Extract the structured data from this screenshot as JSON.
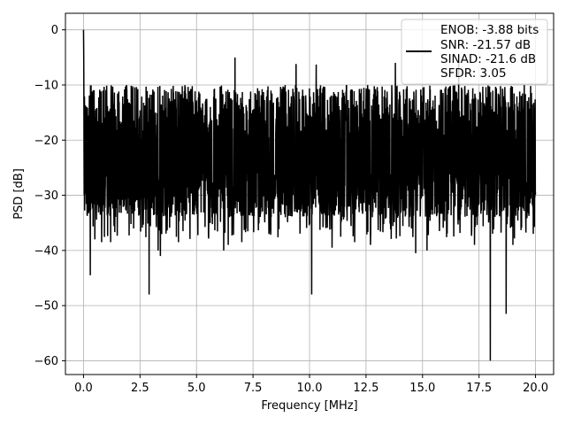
{
  "chart_data": {
    "type": "line",
    "xlabel": "Frequency [MHz]",
    "ylabel": "PSD [dB]",
    "xlim": [
      -0.8,
      20.8
    ],
    "ylim": [
      -62.5,
      3.0
    ],
    "xticks": [
      0.0,
      2.5,
      5.0,
      7.5,
      10.0,
      12.5,
      15.0,
      17.5,
      20.0
    ],
    "xtick_labels": [
      "0.0",
      "2.5",
      "5.0",
      "7.5",
      "10.0",
      "12.5",
      "15.0",
      "17.5",
      "20.0"
    ],
    "yticks": [
      0,
      -10,
      -20,
      -30,
      -40,
      -50,
      -60
    ],
    "ytick_labels": [
      "0",
      "−10",
      "−20",
      "−30",
      "−40",
      "−50",
      "−60"
    ],
    "grid": true,
    "legend": {
      "placement": "top-right",
      "lines": [
        "ENOB: -3.88 bits",
        "SNR: -21.57 dB",
        "SINAD: -21.6 dB",
        "SFDR: 3.05"
      ]
    },
    "series_color": "#000000",
    "x_range": [
      0.0,
      20.0
    ],
    "points": 2400,
    "typical_band_db": [
      -30,
      -12
    ],
    "peaks": [
      {
        "x": 0.0,
        "y": 0.0
      },
      {
        "x": 6.7,
        "y": -5.0
      },
      {
        "x": 9.4,
        "y": -6.2
      },
      {
        "x": 10.3,
        "y": -6.3
      },
      {
        "x": 13.8,
        "y": -6.0
      },
      {
        "x": 16.6,
        "y": -6.0
      }
    ],
    "dips": [
      {
        "x": 0.3,
        "y": -44.5
      },
      {
        "x": 0.5,
        "y": -38.0
      },
      {
        "x": 0.8,
        "y": -38.5
      },
      {
        "x": 1.2,
        "y": -38.5
      },
      {
        "x": 2.9,
        "y": -48.0
      },
      {
        "x": 3.3,
        "y": -40.0
      },
      {
        "x": 3.4,
        "y": -41.0
      },
      {
        "x": 4.2,
        "y": -38.5
      },
      {
        "x": 6.2,
        "y": -40.0
      },
      {
        "x": 6.4,
        "y": -39.0
      },
      {
        "x": 7.0,
        "y": -38.5
      },
      {
        "x": 10.1,
        "y": -48.0
      },
      {
        "x": 11.0,
        "y": -39.5
      },
      {
        "x": 12.0,
        "y": -38.5
      },
      {
        "x": 12.7,
        "y": -39.0
      },
      {
        "x": 14.7,
        "y": -40.5
      },
      {
        "x": 15.2,
        "y": -40.0
      },
      {
        "x": 17.3,
        "y": -39.0
      },
      {
        "x": 18.0,
        "y": -60.0
      },
      {
        "x": 18.7,
        "y": -51.5
      },
      {
        "x": 19.0,
        "y": -39.0
      },
      {
        "x": 19.9,
        "y": -37.0
      }
    ]
  }
}
